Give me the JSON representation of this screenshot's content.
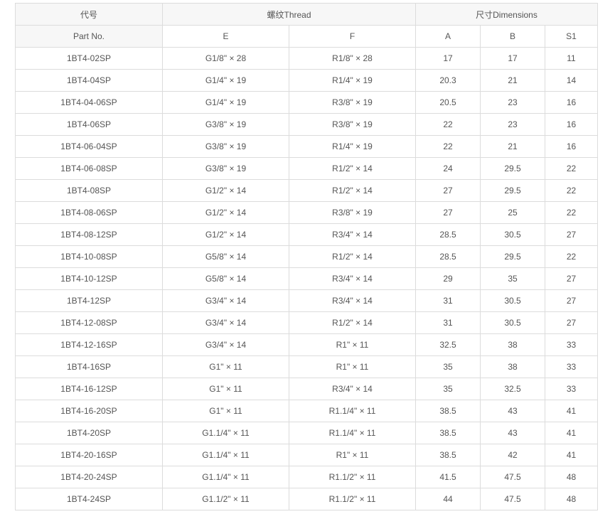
{
  "header": {
    "part_cn": "代号",
    "part_en": "Part No.",
    "thread": "螺纹Thread",
    "dims": "尺寸Dimensions",
    "cols": [
      "E",
      "F",
      "A",
      "B",
      "S1"
    ]
  },
  "rows": [
    [
      "1BT4-02SP",
      "G1/8\" × 28",
      "R1/8\" × 28",
      "17",
      "17",
      "11"
    ],
    [
      "1BT4-04SP",
      "G1/4\" × 19",
      "R1/4\" × 19",
      "20.3",
      "21",
      "14"
    ],
    [
      "1BT4-04-06SP",
      "G1/4\" × 19",
      "R3/8\" × 19",
      "20.5",
      "23",
      "16"
    ],
    [
      "1BT4-06SP",
      "G3/8\" × 19",
      "R3/8\" × 19",
      "22",
      "23",
      "16"
    ],
    [
      "1BT4-06-04SP",
      "G3/8\" × 19",
      "R1/4\" × 19",
      "22",
      "21",
      "16"
    ],
    [
      "1BT4-06-08SP",
      "G3/8\" × 19",
      "R1/2\" × 14",
      "24",
      "29.5",
      "22"
    ],
    [
      "1BT4-08SP",
      "G1/2\" × 14",
      "R1/2\" × 14",
      "27",
      "29.5",
      "22"
    ],
    [
      "1BT4-08-06SP",
      "G1/2\" × 14",
      "R3/8\" × 19",
      "27",
      "25",
      "22"
    ],
    [
      "1BT4-08-12SP",
      "G1/2\" × 14",
      "R3/4\" × 14",
      "28.5",
      "30.5",
      "27"
    ],
    [
      "1BT4-10-08SP",
      "G5/8\" × 14",
      "R1/2\" × 14",
      "28.5",
      "29.5",
      "22"
    ],
    [
      "1BT4-10-12SP",
      "G5/8\" × 14",
      "R3/4\" × 14",
      "29",
      "35",
      "27"
    ],
    [
      "1BT4-12SP",
      "G3/4\" × 14",
      "R3/4\" × 14",
      "31",
      "30.5",
      "27"
    ],
    [
      "1BT4-12-08SP",
      "G3/4\" × 14",
      "R1/2\" × 14",
      "31",
      "30.5",
      "27"
    ],
    [
      "1BT4-12-16SP",
      "G3/4\" × 14",
      "R1\" × 11",
      "32.5",
      "38",
      "33"
    ],
    [
      "1BT4-16SP",
      "G1\" × 11",
      "R1\" × 11",
      "35",
      "38",
      "33"
    ],
    [
      "1BT4-16-12SP",
      "G1\" × 11",
      "R3/4\" × 14",
      "35",
      "32.5",
      "33"
    ],
    [
      "1BT4-16-20SP",
      "G1\" × 11",
      "R1.1/4\" × 11",
      "38.5",
      "43",
      "41"
    ],
    [
      "1BT4-20SP",
      "G1.1/4\" × 11",
      "R1.1/4\" × 11",
      "38.5",
      "43",
      "41"
    ],
    [
      "1BT4-20-16SP",
      "G1.1/4\" × 11",
      "R1\" × 11",
      "38.5",
      "42",
      "41"
    ],
    [
      "1BT4-20-24SP",
      "G1.1/4\" × 11",
      "R1.1/2\" × 11",
      "41.5",
      "47.5",
      "48"
    ],
    [
      "1BT4-24SP",
      "G1.1/2\" × 11",
      "R1.1/2\" × 11",
      "44",
      "47.5",
      "48"
    ]
  ]
}
